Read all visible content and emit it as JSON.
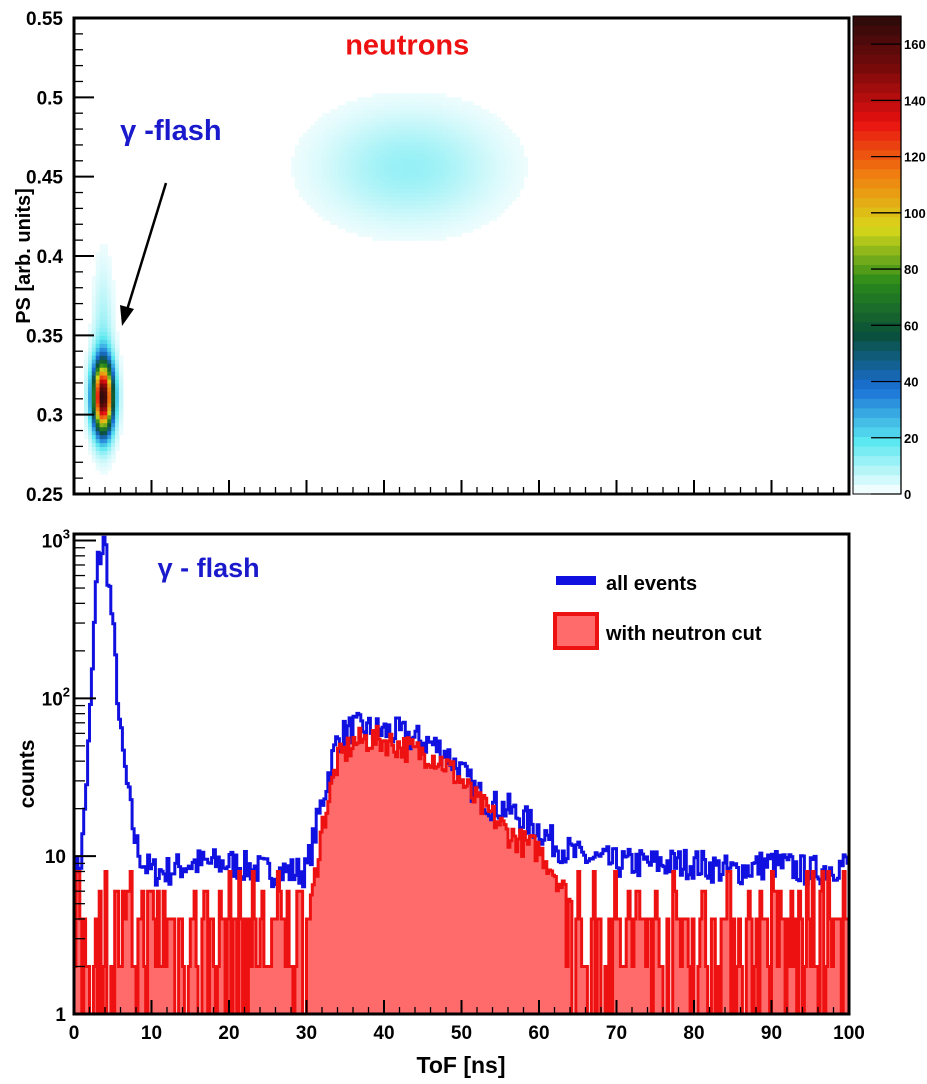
{
  "chart_data": [
    {
      "type": "heatmap",
      "title": "",
      "xlabel": "",
      "ylabel": "PS [arb. units]",
      "xlim": [
        0,
        100
      ],
      "ylim": [
        0.25,
        0.55
      ],
      "y_ticks": [
        "0.25",
        "0.3",
        "0.35",
        "0.4",
        "0.45",
        "0.5",
        "0.55"
      ],
      "color_scale": {
        "min": 0,
        "max": 170,
        "ticks": [
          "0",
          "20",
          "40",
          "60",
          "80",
          "100",
          "120",
          "140",
          "160"
        ],
        "colors": [
          "#ffffff",
          "#5ae8f0",
          "#1a6fd6",
          "#0a4f3a",
          "#2a8a1a",
          "#d8d81a",
          "#f08010",
          "#e81010",
          "#7a0a0a",
          "#2a0a0a"
        ]
      },
      "clusters": [
        {
          "name": "gamma",
          "x_center": 3.5,
          "y_center": 0.34,
          "x_sigma": 0.9,
          "y_sigma": 0.035,
          "peak": 165
        },
        {
          "name": "neutron",
          "x_center": 43,
          "y_center": 0.455,
          "x_sigma": 8,
          "y_sigma": 0.025,
          "peak": 12
        }
      ],
      "annotations": [
        {
          "text": "neutrons",
          "x": 43,
          "y": 0.527,
          "color": "#ee1111"
        },
        {
          "text": "γ -flash",
          "x": 12.5,
          "y": 0.473,
          "color": "#1a1acc"
        }
      ]
    },
    {
      "type": "line",
      "title": "",
      "xlabel": "ToF [ns]",
      "ylabel": "counts",
      "xlim": [
        0,
        100
      ],
      "ylim": [
        1,
        1100
      ],
      "yscale": "log",
      "x_ticks": [
        "0",
        "10",
        "20",
        "30",
        "40",
        "50",
        "60",
        "70",
        "80",
        "90",
        "100"
      ],
      "y_ticks": [
        "1",
        "10",
        "10^2",
        "10^3"
      ],
      "legend": "top-right",
      "series": [
        {
          "name": "all events",
          "color": "#1010e0",
          "x": [
            0,
            1,
            2,
            3,
            4,
            5,
            6,
            7,
            8,
            9,
            10,
            12,
            15,
            20,
            25,
            30,
            32,
            34,
            36,
            38,
            40,
            42,
            44,
            46,
            48,
            50,
            52,
            54,
            56,
            58,
            60,
            62,
            65,
            70,
            75,
            80,
            85,
            90,
            95,
            100
          ],
          "values": [
            7,
            10,
            60,
            700,
            1000,
            300,
            60,
            25,
            12,
            9,
            8,
            8,
            9,
            9,
            8,
            8,
            22,
            55,
            65,
            63,
            62,
            60,
            55,
            52,
            45,
            34,
            25,
            21,
            20,
            17,
            15,
            12,
            10,
            9,
            9,
            9,
            8,
            9,
            8,
            9
          ]
        },
        {
          "name": "with neutron cut",
          "color": "#ee1111",
          "fill": "#ff6b6b",
          "x": [
            0,
            1,
            2,
            3,
            4,
            5,
            6,
            7,
            8,
            9,
            10,
            12,
            15,
            20,
            25,
            30,
            32,
            34,
            36,
            38,
            40,
            42,
            44,
            46,
            48,
            50,
            52,
            54,
            56,
            58,
            60,
            62,
            65,
            70,
            75,
            80,
            85,
            90,
            95,
            100
          ],
          "values": [
            3,
            3,
            3,
            3,
            3,
            3,
            3,
            3,
            3,
            3,
            3,
            3,
            3,
            3,
            3,
            3,
            15,
            40,
            52,
            55,
            54,
            50,
            46,
            44,
            38,
            30,
            22,
            18,
            14,
            12,
            11,
            8,
            4,
            3,
            3,
            3,
            3,
            3,
            3,
            3
          ]
        }
      ],
      "annotations": [
        {
          "text": "γ - flash",
          "x": 9.5,
          "y": 700,
          "color": "#1a1acc"
        }
      ]
    }
  ]
}
